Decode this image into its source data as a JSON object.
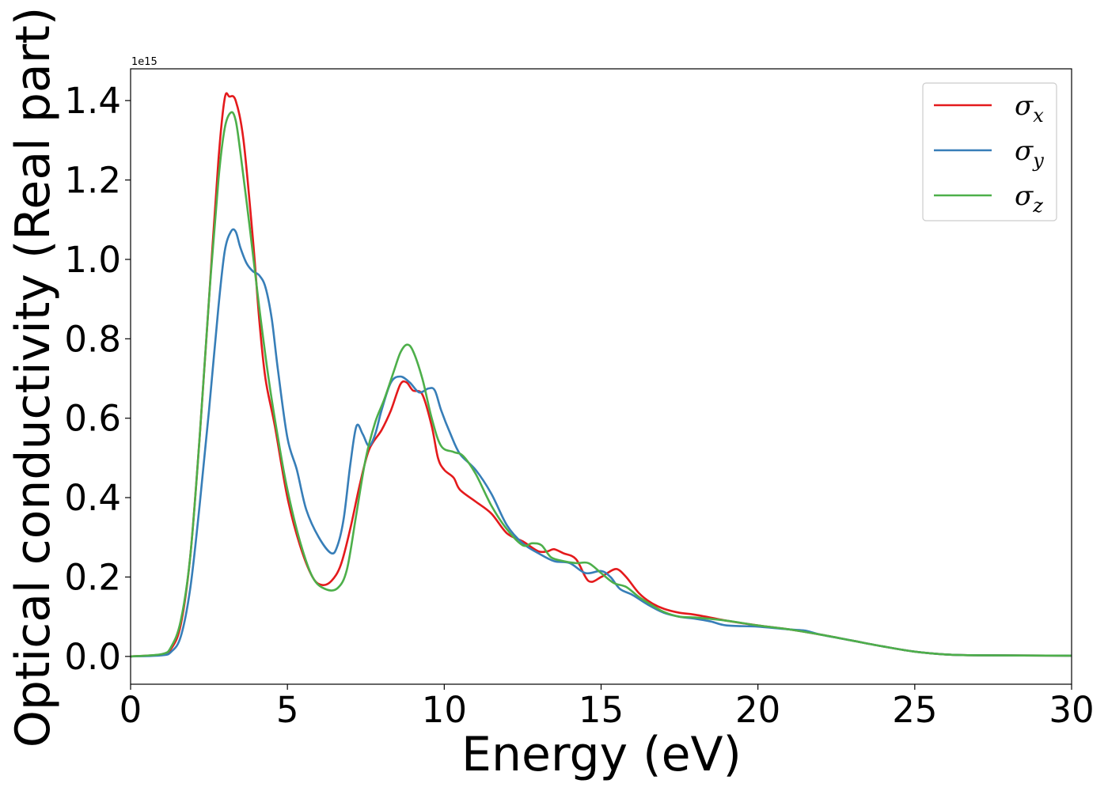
{
  "chart_data": {
    "type": "line",
    "xlabel": "Energy (eV)",
    "ylabel": "Optical conductivity (Real part)",
    "y_offset_text": "1e15",
    "xlim": [
      0,
      30
    ],
    "ylim": [
      -0.07,
      1.48
    ],
    "x_ticks": [
      0,
      5,
      10,
      15,
      20,
      25,
      30
    ],
    "x_tick_labels": [
      "0",
      "5",
      "10",
      "15",
      "20",
      "25",
      "30"
    ],
    "y_ticks": [
      0.0,
      0.2,
      0.4,
      0.6,
      0.8,
      1.0,
      1.2,
      1.4
    ],
    "y_tick_labels": [
      "0.0",
      "0.2",
      "0.4",
      "0.6",
      "0.8",
      "1.0",
      "1.2",
      "1.4"
    ],
    "grid": false,
    "legend_position": "top-right",
    "series": [
      {
        "name": "σx",
        "symbol": "σ",
        "subscript": "x",
        "color": "#e41a1c",
        "points": [
          [
            0,
            0
          ],
          [
            1,
            0.005
          ],
          [
            1.3,
            0.02
          ],
          [
            1.6,
            0.08
          ],
          [
            1.9,
            0.25
          ],
          [
            2.2,
            0.55
          ],
          [
            2.5,
            0.9
          ],
          [
            2.8,
            1.25
          ],
          [
            3.0,
            1.405
          ],
          [
            3.15,
            1.41
          ],
          [
            3.35,
            1.4
          ],
          [
            3.6,
            1.3
          ],
          [
            3.9,
            1.05
          ],
          [
            4.1,
            0.85
          ],
          [
            4.3,
            0.7
          ],
          [
            4.6,
            0.58
          ],
          [
            5.0,
            0.4
          ],
          [
            5.4,
            0.28
          ],
          [
            5.8,
            0.2
          ],
          [
            6.1,
            0.18
          ],
          [
            6.4,
            0.19
          ],
          [
            6.7,
            0.23
          ],
          [
            7.0,
            0.32
          ],
          [
            7.3,
            0.43
          ],
          [
            7.6,
            0.52
          ],
          [
            8.0,
            0.57
          ],
          [
            8.3,
            0.62
          ],
          [
            8.6,
            0.685
          ],
          [
            8.8,
            0.69
          ],
          [
            9.0,
            0.67
          ],
          [
            9.3,
            0.66
          ],
          [
            9.6,
            0.58
          ],
          [
            9.8,
            0.5
          ],
          [
            10.0,
            0.47
          ],
          [
            10.3,
            0.45
          ],
          [
            10.5,
            0.42
          ],
          [
            11.0,
            0.39
          ],
          [
            11.5,
            0.36
          ],
          [
            12.0,
            0.31
          ],
          [
            12.5,
            0.29
          ],
          [
            13.0,
            0.265
          ],
          [
            13.3,
            0.265
          ],
          [
            13.5,
            0.27
          ],
          [
            13.8,
            0.26
          ],
          [
            14.2,
            0.245
          ],
          [
            14.6,
            0.19
          ],
          [
            15.0,
            0.2
          ],
          [
            15.2,
            0.21
          ],
          [
            15.5,
            0.22
          ],
          [
            15.8,
            0.2
          ],
          [
            16.2,
            0.16
          ],
          [
            16.6,
            0.135
          ],
          [
            17.0,
            0.12
          ],
          [
            17.5,
            0.11
          ],
          [
            18.0,
            0.105
          ],
          [
            19.0,
            0.09
          ],
          [
            20.0,
            0.078
          ],
          [
            21.0,
            0.068
          ],
          [
            22.0,
            0.055
          ],
          [
            23.0,
            0.04
          ],
          [
            24.0,
            0.025
          ],
          [
            25.0,
            0.012
          ],
          [
            26.0,
            0.005
          ],
          [
            27.0,
            0.003
          ],
          [
            30.0,
            0.002
          ]
        ]
      },
      {
        "name": "σy",
        "symbol": "σ",
        "subscript": "y",
        "color": "#377eb8",
        "points": [
          [
            0,
            0
          ],
          [
            1,
            0.003
          ],
          [
            1.3,
            0.012
          ],
          [
            1.6,
            0.05
          ],
          [
            1.9,
            0.17
          ],
          [
            2.2,
            0.38
          ],
          [
            2.5,
            0.62
          ],
          [
            2.8,
            0.88
          ],
          [
            3.0,
            1.02
          ],
          [
            3.2,
            1.07
          ],
          [
            3.35,
            1.07
          ],
          [
            3.5,
            1.03
          ],
          [
            3.7,
            0.99
          ],
          [
            3.9,
            0.97
          ],
          [
            4.1,
            0.96
          ],
          [
            4.3,
            0.93
          ],
          [
            4.5,
            0.85
          ],
          [
            4.7,
            0.72
          ],
          [
            5.0,
            0.55
          ],
          [
            5.3,
            0.47
          ],
          [
            5.6,
            0.37
          ],
          [
            6.0,
            0.3
          ],
          [
            6.4,
            0.26
          ],
          [
            6.6,
            0.28
          ],
          [
            6.8,
            0.35
          ],
          [
            7.0,
            0.48
          ],
          [
            7.2,
            0.58
          ],
          [
            7.4,
            0.56
          ],
          [
            7.6,
            0.53
          ],
          [
            7.8,
            0.56
          ],
          [
            8.0,
            0.62
          ],
          [
            8.3,
            0.69
          ],
          [
            8.6,
            0.705
          ],
          [
            8.9,
            0.69
          ],
          [
            9.2,
            0.665
          ],
          [
            9.5,
            0.675
          ],
          [
            9.7,
            0.67
          ],
          [
            9.9,
            0.62
          ],
          [
            10.2,
            0.56
          ],
          [
            10.5,
            0.51
          ],
          [
            11.0,
            0.47
          ],
          [
            11.5,
            0.41
          ],
          [
            12.0,
            0.33
          ],
          [
            12.5,
            0.285
          ],
          [
            13.0,
            0.26
          ],
          [
            13.5,
            0.24
          ],
          [
            14.0,
            0.235
          ],
          [
            14.5,
            0.21
          ],
          [
            15.0,
            0.215
          ],
          [
            15.3,
            0.2
          ],
          [
            15.6,
            0.17
          ],
          [
            16.0,
            0.155
          ],
          [
            16.5,
            0.13
          ],
          [
            17.0,
            0.11
          ],
          [
            17.5,
            0.1
          ],
          [
            18.0,
            0.095
          ],
          [
            18.5,
            0.088
          ],
          [
            19.0,
            0.078
          ],
          [
            20.0,
            0.075
          ],
          [
            21.0,
            0.068
          ],
          [
            21.5,
            0.065
          ],
          [
            22.0,
            0.055
          ],
          [
            23.0,
            0.04
          ],
          [
            24.0,
            0.025
          ],
          [
            25.0,
            0.012
          ],
          [
            26.0,
            0.005
          ],
          [
            27.0,
            0.003
          ],
          [
            30.0,
            0.002
          ]
        ]
      },
      {
        "name": "σz",
        "symbol": "σ",
        "subscript": "z",
        "color": "#4daf4a",
        "points": [
          [
            0,
            0
          ],
          [
            1,
            0.006
          ],
          [
            1.3,
            0.025
          ],
          [
            1.6,
            0.09
          ],
          [
            1.9,
            0.25
          ],
          [
            2.2,
            0.55
          ],
          [
            2.5,
            0.9
          ],
          [
            2.8,
            1.2
          ],
          [
            3.0,
            1.33
          ],
          [
            3.2,
            1.37
          ],
          [
            3.35,
            1.35
          ],
          [
            3.5,
            1.27
          ],
          [
            3.8,
            1.08
          ],
          [
            4.1,
            0.88
          ],
          [
            4.4,
            0.7
          ],
          [
            4.7,
            0.55
          ],
          [
            5.0,
            0.42
          ],
          [
            5.4,
            0.29
          ],
          [
            5.8,
            0.2
          ],
          [
            6.2,
            0.17
          ],
          [
            6.6,
            0.172
          ],
          [
            6.9,
            0.22
          ],
          [
            7.2,
            0.36
          ],
          [
            7.5,
            0.5
          ],
          [
            7.8,
            0.59
          ],
          [
            8.1,
            0.65
          ],
          [
            8.4,
            0.72
          ],
          [
            8.6,
            0.765
          ],
          [
            8.8,
            0.785
          ],
          [
            9.0,
            0.77
          ],
          [
            9.3,
            0.7
          ],
          [
            9.6,
            0.6
          ],
          [
            9.9,
            0.53
          ],
          [
            10.3,
            0.515
          ],
          [
            10.6,
            0.505
          ],
          [
            11.0,
            0.46
          ],
          [
            11.5,
            0.38
          ],
          [
            12.0,
            0.32
          ],
          [
            12.5,
            0.28
          ],
          [
            12.8,
            0.285
          ],
          [
            13.1,
            0.28
          ],
          [
            13.4,
            0.25
          ],
          [
            13.8,
            0.24
          ],
          [
            14.2,
            0.235
          ],
          [
            14.6,
            0.235
          ],
          [
            15.0,
            0.21
          ],
          [
            15.4,
            0.185
          ],
          [
            15.8,
            0.175
          ],
          [
            16.2,
            0.15
          ],
          [
            16.6,
            0.13
          ],
          [
            17.0,
            0.112
          ],
          [
            17.5,
            0.1
          ],
          [
            18.0,
            0.098
          ],
          [
            19.0,
            0.09
          ],
          [
            20.0,
            0.078
          ],
          [
            21.0,
            0.068
          ],
          [
            22.0,
            0.055
          ],
          [
            23.0,
            0.04
          ],
          [
            24.0,
            0.025
          ],
          [
            25.0,
            0.012
          ],
          [
            26.0,
            0.005
          ],
          [
            27.0,
            0.003
          ],
          [
            30.0,
            0.002
          ]
        ]
      }
    ]
  }
}
